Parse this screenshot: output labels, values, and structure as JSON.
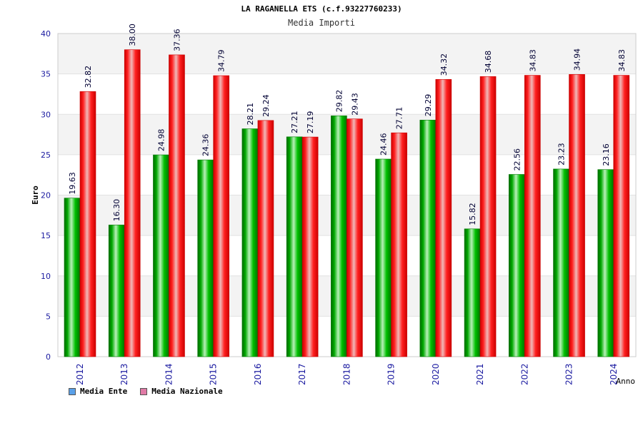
{
  "header": {
    "title": "LA RAGANELLA ETS (c.f.93227760233)",
    "subtitle": "Media Importi"
  },
  "legend": {
    "items": [
      {
        "label": "Media Ente",
        "color": "#5aa0e8"
      },
      {
        "label": "Media Nazionale",
        "color": "#e07aa6"
      }
    ]
  },
  "chart_data": {
    "type": "bar",
    "title": "Media Importi",
    "xlabel": "Anno",
    "ylabel": "Euro",
    "ylim": [
      0,
      40
    ],
    "yticks": [
      0,
      5,
      10,
      15,
      20,
      25,
      30,
      35,
      40
    ],
    "grid": "horizontal bands",
    "legend_position": "bottom-left",
    "categories": [
      "2012",
      "2013",
      "2014",
      "2015",
      "2016",
      "2017",
      "2018",
      "2019",
      "2020",
      "2021",
      "2022",
      "2023",
      "2024"
    ],
    "series": [
      {
        "name": "Media Ente",
        "color": "#00b000",
        "values": [
          19.63,
          16.3,
          24.98,
          24.36,
          28.21,
          27.21,
          29.82,
          24.46,
          29.29,
          15.82,
          22.56,
          23.23,
          23.16
        ],
        "labels": [
          "19.63",
          "16.30",
          "24.98",
          "24.36",
          "28.21",
          "27.21",
          "29.82",
          "24.46",
          "29.29",
          "15.82",
          "22.56",
          "23.23",
          "23.16"
        ]
      },
      {
        "name": "Media Nazionale",
        "color": "#ee0000",
        "values": [
          32.82,
          38.0,
          37.36,
          34.79,
          29.24,
          27.19,
          29.43,
          27.71,
          34.32,
          34.68,
          34.83,
          34.94,
          34.83
        ],
        "labels": [
          "32.82",
          "38.00",
          "37.36",
          "34.79",
          "29.24",
          "27.19",
          "29.43",
          "27.71",
          "34.32",
          "34.68",
          "34.83",
          "34.94",
          "34.83"
        ]
      }
    ]
  }
}
